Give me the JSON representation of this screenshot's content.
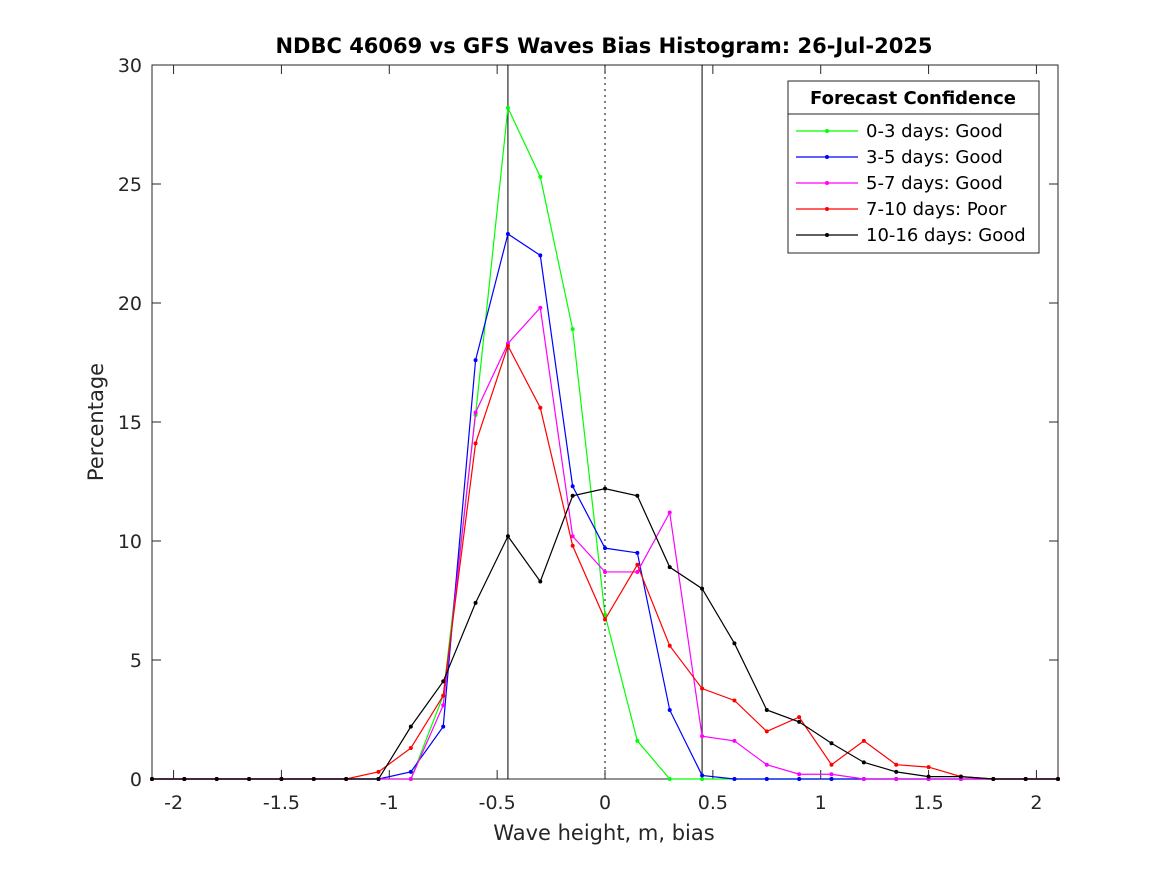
{
  "chart_data": {
    "type": "line",
    "title": "NDBC 46069 vs GFS Waves Bias Histogram: 26-Jul-2025",
    "xlabel": "Wave height, m, bias",
    "ylabel": "Percentage",
    "xlim": [
      -2.1,
      2.1
    ],
    "ylim": [
      0,
      30
    ],
    "xticks": [
      -2,
      -1.5,
      -1,
      -0.5,
      0,
      0.5,
      1,
      1.5,
      2
    ],
    "xtick_labels": [
      "-2",
      "-1.5",
      "-1",
      "-0.5",
      "0",
      "0.5",
      "1",
      "1.5",
      "2"
    ],
    "yticks": [
      0,
      5,
      10,
      15,
      20,
      25,
      30
    ],
    "ytick_labels": [
      "0",
      "5",
      "10",
      "15",
      "20",
      "25",
      "30"
    ],
    "grid": false,
    "vertical_lines": [
      {
        "x": -0.45,
        "style": "solid"
      },
      {
        "x": 0,
        "style": "dotted"
      },
      {
        "x": 0.45,
        "style": "solid"
      }
    ],
    "legend": {
      "title": "Forecast Confidence",
      "position": "top-right"
    },
    "x": [
      -2.1,
      -1.95,
      -1.8,
      -1.65,
      -1.5,
      -1.35,
      -1.2,
      -1.05,
      -0.9,
      -0.75,
      -0.6,
      -0.45,
      -0.3,
      -0.15,
      0,
      0.15,
      0.3,
      0.45,
      0.6,
      0.75,
      0.9,
      1.05,
      1.2,
      1.35,
      1.5,
      1.65,
      1.8,
      1.95,
      2.1
    ],
    "series": [
      {
        "name": "0-3 days: Good",
        "color": "#00ff00",
        "values": [
          0,
          0,
          0,
          0,
          0,
          0,
          0,
          0,
          0,
          3.5,
          15.3,
          28.2,
          25.3,
          18.9,
          6.9,
          1.6,
          0,
          0,
          0,
          0,
          0,
          0,
          0,
          0,
          0,
          0,
          0,
          0,
          0
        ]
      },
      {
        "name": "3-5 days: Good",
        "color": "#0000ff",
        "values": [
          0,
          0,
          0,
          0,
          0,
          0,
          0,
          0,
          0.3,
          2.2,
          17.6,
          22.9,
          22.0,
          12.3,
          9.7,
          9.5,
          2.9,
          0.15,
          0,
          0,
          0,
          0,
          0,
          0,
          0,
          0,
          0,
          0,
          0
        ]
      },
      {
        "name": "5-7 days: Good",
        "color": "#ff00ff",
        "values": [
          0,
          0,
          0,
          0,
          0,
          0,
          0,
          0,
          0,
          3.1,
          15.4,
          18.3,
          19.8,
          10.2,
          8.7,
          8.7,
          11.2,
          1.8,
          1.6,
          0.6,
          0.2,
          0.2,
          0,
          0,
          0,
          0,
          0,
          0,
          0
        ]
      },
      {
        "name": "7-10 days: Poor",
        "color": "#ff0000",
        "values": [
          0,
          0,
          0,
          0,
          0,
          0,
          0,
          0.3,
          1.3,
          3.5,
          14.1,
          18.2,
          15.6,
          9.8,
          6.7,
          9.0,
          5.6,
          3.8,
          3.3,
          2.0,
          2.6,
          0.6,
          1.6,
          0.6,
          0.5,
          0.1,
          0,
          0,
          0
        ]
      },
      {
        "name": "10-16 days: Good",
        "color": "#000000",
        "values": [
          0,
          0,
          0,
          0,
          0,
          0,
          0,
          0,
          2.2,
          4.1,
          7.4,
          10.2,
          8.3,
          11.9,
          12.2,
          11.9,
          8.9,
          8.0,
          5.7,
          2.9,
          2.4,
          1.5,
          0.7,
          0.3,
          0.1,
          0.1,
          0,
          0,
          0
        ]
      }
    ]
  }
}
